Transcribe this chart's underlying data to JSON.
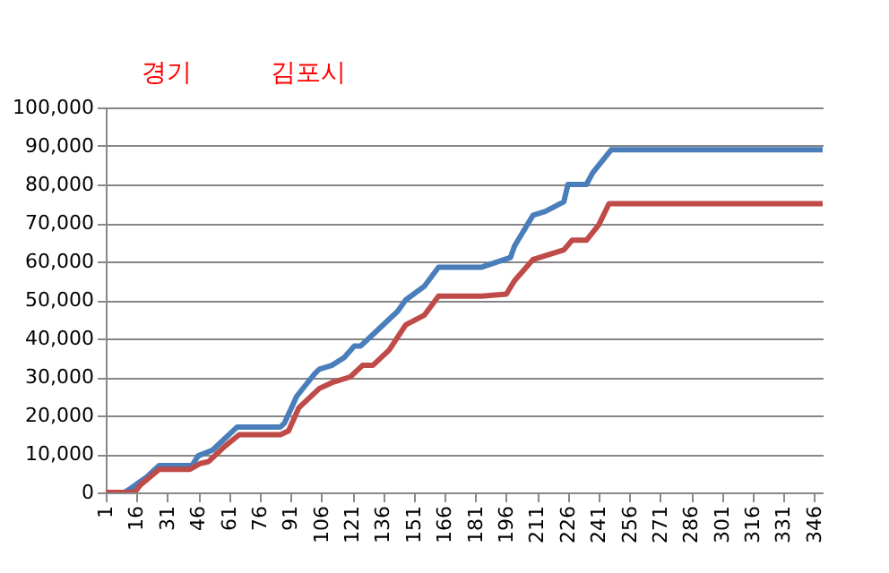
{
  "chart_data": {
    "type": "line",
    "annotations": [
      "경기",
      "김포시"
    ],
    "series": [
      {
        "color": "#4a7ebb",
        "x": [
          1,
          10,
          13,
          21,
          27,
          43,
          46,
          53,
          59,
          65,
          86,
          88,
          94,
          103,
          105,
          111,
          117,
          122,
          125,
          131,
          139,
          143,
          147,
          156,
          163,
          184,
          198,
          200,
          209,
          215,
          224,
          226,
          235,
          238,
          247,
          350
        ],
        "values": [
          0,
          0,
          1000,
          4000,
          7000,
          7000,
          9500,
          11000,
          14000,
          17000,
          17000,
          18000,
          25000,
          31000,
          32000,
          33000,
          35000,
          38000,
          38000,
          41000,
          45000,
          47000,
          50000,
          53500,
          58500,
          58500,
          61000,
          64000,
          72000,
          73000,
          75500,
          80000,
          80000,
          83000,
          89000,
          89000
        ]
      },
      {
        "color": "#be4b48",
        "x": [
          1,
          15,
          18,
          27,
          42,
          47,
          51,
          59,
          66,
          86,
          90,
          95,
          105,
          111,
          120,
          126,
          131,
          139,
          147,
          156,
          163,
          184,
          196,
          200,
          209,
          224,
          228,
          235,
          241,
          246,
          350
        ],
        "values": [
          0,
          0,
          2000,
          6000,
          6000,
          7500,
          8000,
          12000,
          15000,
          15000,
          16000,
          22000,
          27000,
          28500,
          30000,
          33000,
          33000,
          37000,
          43500,
          46000,
          51000,
          51000,
          51500,
          55000,
          60500,
          63000,
          65500,
          65500,
          69500,
          75000,
          75000
        ]
      }
    ],
    "xlim": [
      1,
      350
    ],
    "xticks": [
      1,
      16,
      31,
      46,
      61,
      76,
      91,
      106,
      121,
      136,
      151,
      166,
      181,
      196,
      211,
      226,
      241,
      256,
      271,
      286,
      301,
      316,
      331,
      346
    ],
    "ylim": [
      0,
      100000
    ],
    "yticks": [
      0,
      {
        "value": 10000,
        "label": "10,000"
      },
      {
        "value": 20000,
        "label": "20,000"
      },
      {
        "value": 30000,
        "label": "30,000"
      },
      {
        "value": 40000,
        "label": "40,000"
      },
      {
        "value": 50000,
        "label": "50,000"
      },
      {
        "value": 60000,
        "label": "60,000"
      },
      {
        "value": 70000,
        "label": "70,000"
      },
      {
        "value": 80000,
        "label": "80,000"
      },
      {
        "value": 90000,
        "label": "90,000"
      },
      {
        "value": 100000,
        "label": "100,000"
      }
    ],
    "grid": "y",
    "legend": false,
    "marker": "none",
    "line_style": "solid"
  }
}
